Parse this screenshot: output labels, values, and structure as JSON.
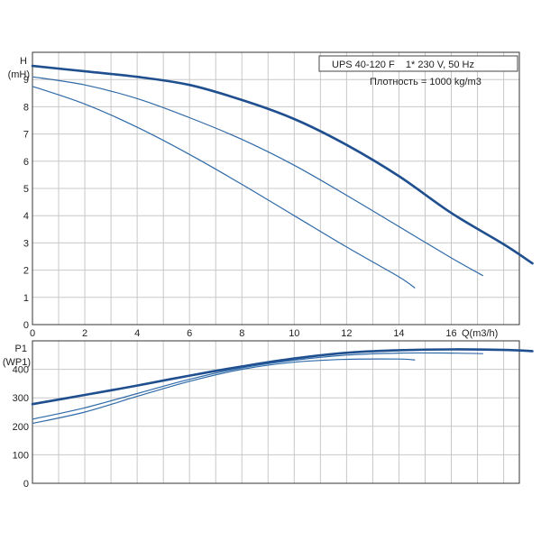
{
  "chart_data": [
    {
      "type": "line",
      "id": "head",
      "ylabel_line1": "H",
      "ylabel_line2": "(mH)",
      "xlabel": "Q(m3/h)",
      "xlim": [
        0,
        18.6
      ],
      "ylim": [
        0,
        10
      ],
      "x_ticks": [
        0,
        2,
        4,
        6,
        8,
        10,
        12,
        14,
        16
      ],
      "y_ticks": [
        0,
        1,
        2,
        3,
        4,
        5,
        6,
        7,
        8,
        9
      ],
      "grid": true,
      "info_line1": "UPS 40-120 F    1* 230 V, 50 Hz",
      "info_line2": "Плотность = 1000 kg/m3",
      "series": [
        {
          "color": "#1f4f8f",
          "weight": "thick",
          "x": [
            0,
            2,
            4,
            6,
            8,
            10,
            12,
            14,
            16,
            18,
            19.1
          ],
          "y": [
            9.5,
            9.3,
            9.1,
            8.8,
            8.25,
            7.55,
            6.6,
            5.45,
            4.1,
            2.95,
            2.25
          ]
        },
        {
          "color": "#2f6aa8",
          "weight": "thin",
          "x": [
            0,
            2,
            4,
            6,
            8,
            10,
            12,
            14,
            16,
            17.2
          ],
          "y": [
            9.1,
            8.8,
            8.3,
            7.6,
            6.8,
            5.85,
            4.75,
            3.6,
            2.45,
            1.8
          ]
        },
        {
          "color": "#2f6aa8",
          "weight": "thin",
          "x": [
            0,
            2,
            4,
            6,
            8,
            10,
            12,
            14,
            14.6
          ],
          "y": [
            8.75,
            8.1,
            7.25,
            6.25,
            5.15,
            4.0,
            2.85,
            1.75,
            1.35
          ]
        }
      ]
    },
    {
      "type": "line",
      "id": "power",
      "ylabel_line1": "P1",
      "ylabel_line2": "(WP1)",
      "xlim": [
        0,
        18.6
      ],
      "ylim": [
        0,
        500
      ],
      "y_ticks": [
        0,
        100,
        200,
        300,
        400
      ],
      "grid": true,
      "series": [
        {
          "color": "#1f4f8f",
          "weight": "thick",
          "x": [
            0,
            2,
            4,
            6,
            8,
            10,
            12,
            14,
            16,
            18,
            19.1
          ],
          "y": [
            278,
            310,
            343,
            378,
            410,
            438,
            458,
            467,
            470,
            468,
            464
          ]
        },
        {
          "color": "#2f6aa8",
          "weight": "thin",
          "x": [
            0,
            2,
            4,
            6,
            8,
            10,
            12,
            14,
            16,
            17.2
          ],
          "y": [
            225,
            265,
            315,
            365,
            405,
            432,
            450,
            457,
            457,
            455
          ]
        },
        {
          "color": "#2f6aa8",
          "weight": "thin",
          "x": [
            0,
            2,
            4,
            6,
            8,
            10,
            12,
            14,
            14.6
          ],
          "y": [
            210,
            250,
            305,
            358,
            400,
            425,
            435,
            436,
            433
          ]
        }
      ]
    }
  ]
}
